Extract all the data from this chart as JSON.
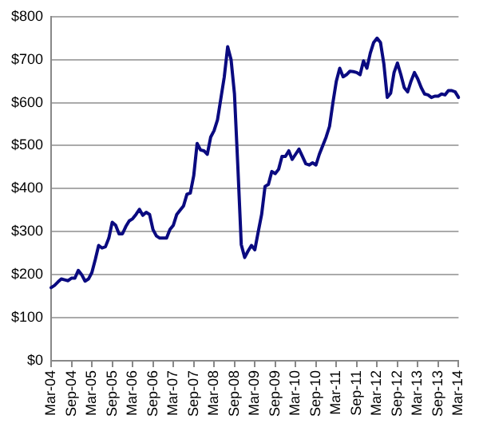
{
  "chart_data": {
    "type": "line",
    "categories": [
      "Mar-04",
      null,
      null,
      null,
      null,
      null,
      "Sep-04",
      null,
      null,
      null,
      null,
      null,
      "Mar-05",
      null,
      null,
      null,
      null,
      null,
      "Sep-05",
      null,
      null,
      null,
      null,
      null,
      "Mar-06",
      null,
      null,
      null,
      null,
      null,
      "Sep-06",
      null,
      null,
      null,
      null,
      null,
      "Mar-07",
      null,
      null,
      null,
      null,
      null,
      "Sep-07",
      null,
      null,
      null,
      null,
      null,
      "Mar-08",
      null,
      null,
      null,
      null,
      null,
      "Sep-08",
      null,
      null,
      null,
      null,
      null,
      "Mar-09",
      null,
      null,
      null,
      null,
      null,
      "Sep-09",
      null,
      null,
      null,
      null,
      null,
      "Mar-10",
      null,
      null,
      null,
      null,
      null,
      "Sep-10",
      null,
      null,
      null,
      null,
      null,
      "Mar-11",
      null,
      null,
      null,
      null,
      null,
      "Sep-11",
      null,
      null,
      null,
      null,
      null,
      "Mar-12",
      null,
      null,
      null,
      null,
      null,
      "Sep-12",
      null,
      null,
      null,
      null,
      null,
      "Mar-13",
      null,
      null,
      null,
      null,
      null,
      "Sep-13",
      null,
      null,
      null,
      null,
      null,
      "Mar-14"
    ],
    "series": [
      {
        "color": "#0a0a80",
        "values": [
          170,
          175,
          183,
          190,
          188,
          186,
          192,
          192,
          210,
          200,
          185,
          190,
          205,
          235,
          268,
          262,
          265,
          285,
          322,
          315,
          295,
          295,
          312,
          325,
          330,
          340,
          352,
          338,
          345,
          340,
          305,
          290,
          285,
          285,
          285,
          305,
          315,
          340,
          350,
          360,
          387,
          390,
          430,
          505,
          490,
          488,
          480,
          520,
          535,
          560,
          610,
          660,
          730,
          700,
          620,
          450,
          270,
          240,
          255,
          268,
          258,
          300,
          340,
          405,
          410,
          440,
          435,
          445,
          475,
          475,
          488,
          468,
          480,
          492,
          475,
          458,
          455,
          460,
          455,
          480,
          500,
          520,
          545,
          600,
          650,
          680,
          660,
          665,
          673,
          672,
          670,
          665,
          697,
          680,
          715,
          740,
          750,
          740,
          690,
          612,
          622,
          670,
          692,
          665,
          635,
          625,
          650,
          670,
          655,
          635,
          620,
          618,
          612,
          615,
          615,
          620,
          618,
          628,
          628,
          625,
          612
        ]
      }
    ],
    "ylim": [
      0,
      800
    ],
    "yticks": [
      {
        "value": 0,
        "label": "$0"
      },
      {
        "value": 100,
        "label": "$100"
      },
      {
        "value": 200,
        "label": "$200"
      },
      {
        "value": 300,
        "label": "$300"
      },
      {
        "value": 400,
        "label": "$400"
      },
      {
        "value": 500,
        "label": "$500"
      },
      {
        "value": 600,
        "label": "$600"
      },
      {
        "value": 700,
        "label": "$700"
      },
      {
        "value": 800,
        "label": "$800"
      }
    ],
    "grid": "y",
    "legend": false,
    "marker": "none",
    "line_style": "solid"
  }
}
